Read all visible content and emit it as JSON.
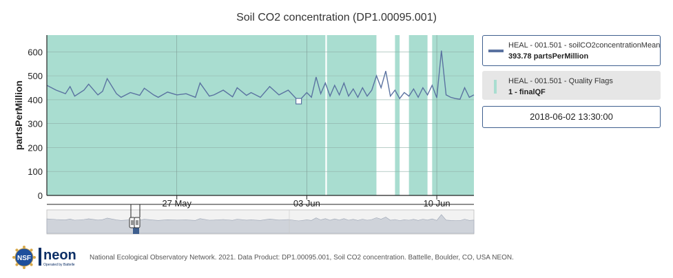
{
  "title": "Soil CO2 concentration (DP1.00095.001)",
  "legend": {
    "series_name": "HEAL - 001.501 - soilCO2concentrationMean",
    "series_value": "393.78 partsPerMillion",
    "flags_name": "HEAL - 001.501 - Quality Flags",
    "flags_value": "1 - finalQF",
    "timestamp": "2018-06-02 13:30:00"
  },
  "footer": {
    "neon_logo_text": "neon",
    "neon_logo_subtext": "Operated by Battelle",
    "nsf_logo_text": "NSF",
    "attribution": "National Ecological Observatory Network. 2021. Data Product: DP1.00095.001, Soil CO2 concentration. Battelle, Boulder, CO, USA NEON."
  },
  "colors": {
    "series": "#5a72a0",
    "quality_flag": "#a9ddd0",
    "legend_border": "#3e5e8e",
    "navigator_fill": "#cfd3da"
  },
  "chart_data": {
    "type": "line",
    "title": "Soil CO2 concentration (DP1.00095.001)",
    "ylabel": "partsPerMillion",
    "xlabel": "",
    "ylim": [
      0,
      670
    ],
    "yticks": [
      0,
      100,
      200,
      300,
      400,
      500,
      600
    ],
    "xlim": [
      "2018-05-20 00:00",
      "2018-06-12 00:00"
    ],
    "xticks": [
      {
        "date": "2018-05-27",
        "label": "27 May"
      },
      {
        "date": "2018-06-03",
        "label": "03 Jun"
      },
      {
        "date": "2018-06-10",
        "label": "10 Jun"
      }
    ],
    "grid": true,
    "legend_position": "right",
    "selected_point": {
      "x": "2018-06-02 13:30",
      "y": 393.78
    },
    "quality_flag_gaps": [
      [
        "2018-06-04 00:00",
        "2018-06-04 02:00"
      ],
      [
        "2018-06-06 18:00",
        "2018-06-07 18:00"
      ],
      [
        "2018-06-08 00:00",
        "2018-06-08 12:00"
      ],
      [
        "2018-06-09 12:00",
        "2018-06-09 18:00"
      ]
    ],
    "series": [
      {
        "name": "HEAL - 001.501 - soilCO2concentrationMean",
        "points": [
          [
            "2018-05-20 00:00",
            460
          ],
          [
            "2018-05-20 12:00",
            440
          ],
          [
            "2018-05-21 00:00",
            425
          ],
          [
            "2018-05-21 06:00",
            455
          ],
          [
            "2018-05-21 12:00",
            415
          ],
          [
            "2018-05-22 00:00",
            440
          ],
          [
            "2018-05-22 06:00",
            465
          ],
          [
            "2018-05-22 18:00",
            420
          ],
          [
            "2018-05-23 00:00",
            435
          ],
          [
            "2018-05-23 06:00",
            488
          ],
          [
            "2018-05-23 18:00",
            425
          ],
          [
            "2018-05-24 00:00",
            410
          ],
          [
            "2018-05-24 12:00",
            430
          ],
          [
            "2018-05-25 00:00",
            418
          ],
          [
            "2018-05-25 06:00",
            448
          ],
          [
            "2018-05-25 18:00",
            420
          ],
          [
            "2018-05-26 00:00",
            410
          ],
          [
            "2018-05-26 12:00",
            432
          ],
          [
            "2018-05-27 00:00",
            420
          ],
          [
            "2018-05-27 12:00",
            425
          ],
          [
            "2018-05-28 00:00",
            410
          ],
          [
            "2018-05-28 06:00",
            470
          ],
          [
            "2018-05-28 18:00",
            415
          ],
          [
            "2018-05-29 00:00",
            420
          ],
          [
            "2018-05-29 12:00",
            440
          ],
          [
            "2018-05-30 00:00",
            412
          ],
          [
            "2018-05-30 06:00",
            450
          ],
          [
            "2018-05-30 18:00",
            418
          ],
          [
            "2018-05-31 00:00",
            430
          ],
          [
            "2018-05-31 12:00",
            410
          ],
          [
            "2018-06-01 00:00",
            455
          ],
          [
            "2018-06-01 12:00",
            420
          ],
          [
            "2018-06-02 00:00",
            440
          ],
          [
            "2018-06-02 13:30",
            393.78
          ],
          [
            "2018-06-03 00:00",
            430
          ],
          [
            "2018-06-03 06:00",
            410
          ],
          [
            "2018-06-03 12:00",
            495
          ],
          [
            "2018-06-03 18:00",
            425
          ],
          [
            "2018-06-04 00:00",
            470
          ],
          [
            "2018-06-04 06:00",
            415
          ],
          [
            "2018-06-04 12:00",
            460
          ],
          [
            "2018-06-04 18:00",
            420
          ],
          [
            "2018-06-05 00:00",
            470
          ],
          [
            "2018-06-05 06:00",
            415
          ],
          [
            "2018-06-05 12:00",
            445
          ],
          [
            "2018-06-05 18:00",
            410
          ],
          [
            "2018-06-06 00:00",
            450
          ],
          [
            "2018-06-06 06:00",
            415
          ],
          [
            "2018-06-06 12:00",
            440
          ],
          [
            "2018-06-06 18:00",
            500
          ],
          [
            "2018-06-07 00:00",
            450
          ],
          [
            "2018-06-07 06:00",
            520
          ],
          [
            "2018-06-07 12:00",
            415
          ],
          [
            "2018-06-07 18:00",
            440
          ],
          [
            "2018-06-08 00:00",
            405
          ],
          [
            "2018-06-08 06:00",
            430
          ],
          [
            "2018-06-08 12:00",
            415
          ],
          [
            "2018-06-08 18:00",
            445
          ],
          [
            "2018-06-09 00:00",
            410
          ],
          [
            "2018-06-09 06:00",
            450
          ],
          [
            "2018-06-09 12:00",
            420
          ],
          [
            "2018-06-09 18:00",
            460
          ],
          [
            "2018-06-10 00:00",
            408
          ],
          [
            "2018-06-10 06:00",
            605
          ],
          [
            "2018-06-10 12:00",
            420
          ],
          [
            "2018-06-10 18:00",
            410
          ],
          [
            "2018-06-11 00:00",
            405
          ],
          [
            "2018-06-11 06:00",
            402
          ],
          [
            "2018-06-11 12:00",
            450
          ],
          [
            "2018-06-11 18:00",
            410
          ],
          [
            "2018-06-12 00:00",
            420
          ]
        ]
      }
    ]
  }
}
